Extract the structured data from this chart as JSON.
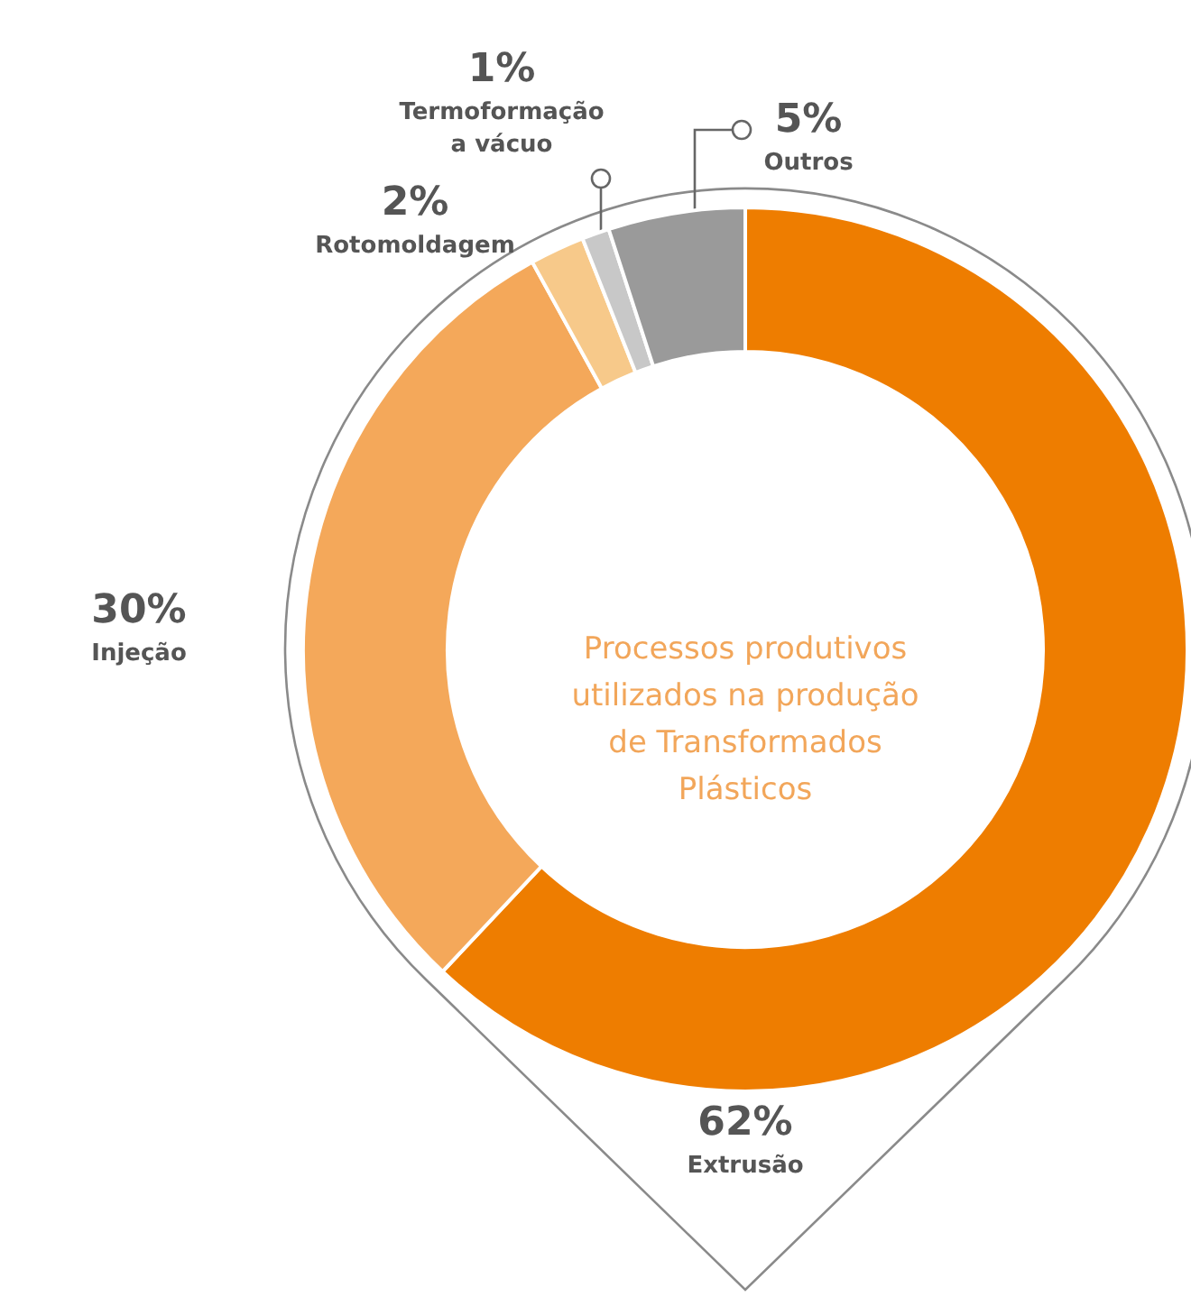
{
  "chart_data": {
    "type": "donut",
    "title": "Processos produtivos utilizados na produção de Transformados Plásticos",
    "categories": [
      "Extrusão",
      "Injeção",
      "Rotomoldagem",
      "Termoformação a vácuo",
      "Outros"
    ],
    "values": [
      62,
      30,
      2,
      1,
      5
    ],
    "colors": [
      "#ee7d00",
      "#f4a85a",
      "#f7c98a",
      "#c8c8c8",
      "#9a9a9a"
    ],
    "value_labels": [
      "62%",
      "30%",
      "2%",
      "1%",
      "5%"
    ]
  }
}
